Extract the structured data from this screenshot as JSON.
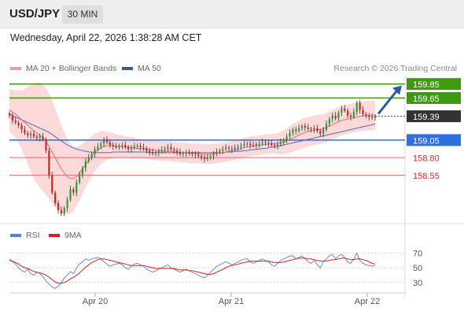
{
  "header": {
    "symbol": "USD/JPY",
    "timeframe": "30 MIN"
  },
  "datetime": "Wednesday, April 22, 2026 1:38:28 AM CET",
  "legend": {
    "ma20_label": "MA 20 + Bollinger Bands",
    "ma50_label": "MA 50",
    "rsi_label": "RSI",
    "ma9_label": "9MA"
  },
  "credit": "Research © 2026 Trading Central",
  "colors": {
    "up_candle": "#1f9e3a",
    "down_candle": "#d41c1c",
    "ma20": "#e86a6a",
    "bollinger_fill": "#fbd3d3",
    "ma50": "#5566b0",
    "target_line": "#4c9a1a",
    "support_line": "#2f6fe0",
    "level_line": "#e86a6a",
    "rsi": "#5a7fd6",
    "rsi_ma": "#d81e1e",
    "arrow": "#2a5aa8"
  },
  "chart_data": [
    {
      "type": "candlestick",
      "title": "USD/JPY 30 MIN",
      "ylim": [
        157.88,
        159.97
      ],
      "x_ticks": [
        "Apr 20",
        "Apr 21",
        "Apr 22"
      ],
      "levels": [
        {
          "label": "159.85",
          "value": 159.85,
          "style": "resistance"
        },
        {
          "label": "159.65",
          "value": 159.65,
          "style": "resistance"
        },
        {
          "label": "159.39",
          "value": 159.39,
          "style": "current"
        },
        {
          "label": "159.05",
          "value": 159.05,
          "style": "pivot"
        },
        {
          "label": "158.80",
          "value": 158.8,
          "style": "support"
        },
        {
          "label": "158.55",
          "value": 158.55,
          "style": "support"
        }
      ],
      "closes": [
        159.4,
        159.33,
        159.3,
        159.26,
        159.2,
        159.15,
        159.12,
        159.14,
        159.1,
        159.08,
        159.1,
        159.06,
        158.9,
        158.55,
        158.3,
        158.15,
        158.05,
        158.0,
        158.08,
        158.2,
        158.35,
        158.3,
        158.45,
        158.55,
        158.65,
        158.75,
        158.8,
        158.85,
        158.92,
        158.96,
        159.0,
        159.05,
        159.02,
        158.98,
        158.96,
        158.95,
        158.97,
        158.98,
        158.95,
        158.92,
        158.94,
        158.96,
        158.97,
        158.95,
        158.93,
        158.9,
        158.88,
        158.86,
        158.87,
        158.89,
        158.91,
        158.93,
        158.95,
        158.92,
        158.9,
        158.88,
        158.85,
        158.86,
        158.87,
        158.86,
        158.85,
        158.84,
        158.82,
        158.8,
        158.78,
        158.8,
        158.82,
        158.85,
        158.88,
        158.9,
        158.92,
        158.94,
        158.93,
        158.92,
        158.94,
        158.96,
        158.97,
        158.99,
        159.0,
        158.98,
        158.97,
        158.99,
        159.0,
        159.02,
        159.01,
        159.0,
        158.98,
        158.97,
        158.99,
        159.02,
        159.05,
        159.1,
        159.15,
        159.2,
        159.18,
        159.22,
        159.25,
        159.23,
        159.21,
        159.2,
        159.22,
        159.18,
        159.14,
        159.2,
        159.28,
        159.35,
        159.4,
        159.36,
        159.44,
        159.5,
        159.47,
        159.4,
        159.38,
        159.45,
        159.58,
        159.48,
        159.42,
        159.4,
        159.38,
        159.37,
        159.39
      ],
      "ma20": [
        159.48,
        159.45,
        159.42,
        159.38,
        159.34,
        159.3,
        159.26,
        159.22,
        159.18,
        159.15,
        159.12,
        159.08,
        159.03,
        158.96,
        158.88,
        158.8,
        158.72,
        158.64,
        158.58,
        158.53,
        158.5,
        158.5,
        158.53,
        158.58,
        158.64,
        158.7,
        158.76,
        158.82,
        158.87,
        158.91,
        158.94,
        158.96,
        158.97,
        158.97,
        158.97,
        158.96,
        158.96,
        158.96,
        158.95,
        158.95,
        158.94,
        158.94,
        158.93,
        158.93,
        158.92,
        158.92,
        158.91,
        158.91,
        158.9,
        158.9,
        158.89,
        158.89,
        158.89,
        158.89,
        158.88,
        158.88,
        158.87,
        158.87,
        158.87,
        158.86,
        158.86,
        158.86,
        158.86,
        158.85,
        158.85,
        158.85,
        158.85,
        158.86,
        158.86,
        158.87,
        158.87,
        158.88,
        158.89,
        158.9,
        158.91,
        158.92,
        158.93,
        158.94,
        158.95,
        158.96,
        158.97,
        158.97,
        158.98,
        158.98,
        158.99,
        158.99,
        159.0,
        159.0,
        159.0,
        159.01,
        159.02,
        159.04,
        159.06,
        159.08,
        159.1,
        159.12,
        159.14,
        159.16,
        159.17,
        159.18,
        159.19,
        159.2,
        159.2,
        159.21,
        159.23,
        159.25,
        159.27,
        159.29,
        159.31,
        159.33,
        159.34,
        159.35,
        159.36,
        159.37,
        159.38,
        159.39,
        159.39,
        159.4,
        159.4,
        159.4,
        159.4
      ],
      "ma50": [
        159.42,
        159.4,
        159.38,
        159.36,
        159.34,
        159.32,
        159.3,
        159.28,
        159.26,
        159.24,
        159.22,
        159.2,
        159.18,
        159.16,
        159.13,
        159.1,
        159.07,
        159.04,
        159.01,
        158.98,
        158.96,
        158.94,
        158.92,
        158.91,
        158.9,
        158.89,
        158.88,
        158.88,
        158.87,
        158.87,
        158.87,
        158.87,
        158.87,
        158.87,
        158.88,
        158.88,
        158.88,
        158.88,
        158.88,
        158.88,
        158.88,
        158.88,
        158.88,
        158.88,
        158.88,
        158.88,
        158.87,
        158.87,
        158.87,
        158.87,
        158.87,
        158.87,
        158.87,
        158.87,
        158.87,
        158.87,
        158.87,
        158.87,
        158.87,
        158.87,
        158.87,
        158.87,
        158.87,
        158.87,
        158.87,
        158.87,
        158.87,
        158.87,
        158.87,
        158.87,
        158.87,
        158.88,
        158.88,
        158.88,
        158.89,
        158.89,
        158.89,
        158.9,
        158.9,
        158.91,
        158.91,
        158.92,
        158.92,
        158.93,
        158.93,
        158.94,
        158.95,
        158.95,
        158.96,
        158.97,
        158.98,
        158.99,
        159.0,
        159.01,
        159.02,
        159.03,
        159.04,
        159.05,
        159.06,
        159.07,
        159.08,
        159.09,
        159.1,
        159.11,
        159.12,
        159.13,
        159.14,
        159.15,
        159.16,
        159.17,
        159.18,
        159.19,
        159.2,
        159.21,
        159.22,
        159.23,
        159.24,
        159.25,
        159.26,
        159.27,
        159.28
      ],
      "band_width": [
        0.3,
        0.32,
        0.34,
        0.38,
        0.42,
        0.48,
        0.55,
        0.62,
        0.68,
        0.72,
        0.75,
        0.76,
        0.76,
        0.75,
        0.73,
        0.7,
        0.66,
        0.62,
        0.58,
        0.54,
        0.5,
        0.46,
        0.42,
        0.39,
        0.36,
        0.33,
        0.31,
        0.29,
        0.27,
        0.25,
        0.24,
        0.22,
        0.2,
        0.19,
        0.18,
        0.17,
        0.16,
        0.16,
        0.15,
        0.15,
        0.15,
        0.15,
        0.14,
        0.14,
        0.14,
        0.14,
        0.14,
        0.14,
        0.14,
        0.14,
        0.14,
        0.14,
        0.14,
        0.14,
        0.14,
        0.14,
        0.14,
        0.14,
        0.14,
        0.14,
        0.14,
        0.14,
        0.14,
        0.14,
        0.14,
        0.14,
        0.14,
        0.14,
        0.14,
        0.14,
        0.14,
        0.14,
        0.14,
        0.14,
        0.14,
        0.14,
        0.14,
        0.14,
        0.14,
        0.14,
        0.14,
        0.14,
        0.14,
        0.14,
        0.14,
        0.14,
        0.14,
        0.14,
        0.15,
        0.16,
        0.17,
        0.18,
        0.19,
        0.2,
        0.2,
        0.21,
        0.21,
        0.21,
        0.21,
        0.21,
        0.21,
        0.21,
        0.21,
        0.21,
        0.21,
        0.21,
        0.21,
        0.21,
        0.21,
        0.21,
        0.21,
        0.21,
        0.21,
        0.21,
        0.21,
        0.21,
        0.21,
        0.21,
        0.21,
        0.21,
        0.21
      ],
      "projection": {
        "from": 159.39,
        "to": 159.85
      }
    },
    {
      "type": "line",
      "title": "RSI",
      "ylim": [
        18,
        82
      ],
      "y_ticks": [
        30,
        50,
        70
      ],
      "series": [
        {
          "name": "RSI",
          "values": [
            62,
            58,
            55,
            50,
            46,
            44,
            48,
            42,
            40,
            44,
            42,
            38,
            32,
            28,
            24,
            22,
            25,
            30,
            36,
            40,
            45,
            42,
            50,
            55,
            58,
            62,
            60,
            62,
            63,
            64,
            62,
            58,
            55,
            52,
            54,
            55,
            56,
            54,
            50,
            48,
            52,
            55,
            56,
            54,
            52,
            48,
            46,
            44,
            46,
            48,
            50,
            52,
            54,
            50,
            48,
            46,
            44,
            46,
            48,
            46,
            44,
            42,
            40,
            38,
            36,
            40,
            44,
            48,
            52,
            54,
            56,
            58,
            56,
            54,
            56,
            58,
            60,
            62,
            62,
            58,
            56,
            58,
            60,
            62,
            60,
            58,
            54,
            52,
            56,
            60,
            62,
            64,
            66,
            66,
            62,
            64,
            66,
            62,
            58,
            56,
            60,
            54,
            50,
            58,
            62,
            66,
            68,
            62,
            66,
            68,
            64,
            58,
            56,
            62,
            70,
            60,
            56,
            54,
            53,
            52,
            53
          ]
        },
        {
          "name": "9MA",
          "values": [
            60,
            59,
            57,
            55,
            52,
            50,
            49,
            47,
            45,
            44,
            43,
            42,
            40,
            37,
            34,
            31,
            29,
            29,
            30,
            32,
            35,
            37,
            40,
            43,
            47,
            51,
            54,
            57,
            59,
            61,
            62,
            62,
            61,
            60,
            59,
            58,
            57,
            56,
            55,
            54,
            53,
            53,
            53,
            53,
            53,
            52,
            51,
            50,
            49,
            49,
            49,
            49,
            49,
            49,
            49,
            48,
            47,
            47,
            47,
            46,
            46,
            45,
            44,
            43,
            42,
            41,
            41,
            42,
            44,
            46,
            48,
            50,
            52,
            53,
            54,
            55,
            56,
            57,
            58,
            59,
            59,
            59,
            59,
            59,
            59,
            59,
            58,
            57,
            57,
            57,
            58,
            59,
            60,
            61,
            62,
            63,
            63,
            63,
            62,
            62,
            61,
            60,
            59,
            59,
            59,
            60,
            61,
            61,
            62,
            63,
            63,
            62,
            61,
            61,
            62,
            62,
            61,
            60,
            58,
            56,
            55
          ]
        }
      ]
    }
  ]
}
